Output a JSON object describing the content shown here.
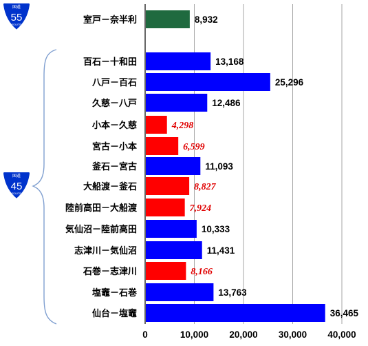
{
  "shields": {
    "route55": {
      "kanji": "国道",
      "number": "55",
      "sub": "ROUTE"
    },
    "route45": {
      "kanji": "国道",
      "number": "45",
      "sub": "ROUTE"
    }
  },
  "chart_data": {
    "type": "bar",
    "orientation": "horizontal",
    "xlim": [
      0,
      40000
    ],
    "xticks": [
      "0",
      "10,000",
      "20,000",
      "30,000",
      "40,000"
    ],
    "grid": true,
    "colors": {
      "green": "#1f6a3f",
      "blue": "#0000ff",
      "red": "#ff0000"
    },
    "bars": [
      {
        "category": "室戸－奈半利",
        "value": 8932,
        "label": "8,932",
        "color": "green",
        "route": "55"
      },
      {
        "category": "百石－十和田",
        "value": 13168,
        "label": "13,168",
        "color": "blue",
        "route": "45"
      },
      {
        "category": "八戸－百石",
        "value": 25296,
        "label": "25,296",
        "color": "blue",
        "route": "45"
      },
      {
        "category": "久慈－八戸",
        "value": 12486,
        "label": "12,486",
        "color": "blue",
        "route": "45"
      },
      {
        "category": "小本－久慈",
        "value": 4298,
        "label": "4,298",
        "color": "red",
        "route": "45"
      },
      {
        "category": "宮古－小本",
        "value": 6599,
        "label": "6,599",
        "color": "red",
        "route": "45"
      },
      {
        "category": "釜石－宮古",
        "value": 11093,
        "label": "11,093",
        "color": "blue",
        "route": "45"
      },
      {
        "category": "大船渡－釜石",
        "value": 8827,
        "label": "8,827",
        "color": "red",
        "route": "45"
      },
      {
        "category": "陸前高田－大船渡",
        "value": 7924,
        "label": "7,924",
        "color": "red",
        "route": "45"
      },
      {
        "category": "気仙沼－陸前高田",
        "value": 10333,
        "label": "10,333",
        "color": "blue",
        "route": "45"
      },
      {
        "category": "志津川－気仙沼",
        "value": 11431,
        "label": "11,431",
        "color": "blue",
        "route": "45"
      },
      {
        "category": "石巻－志津川",
        "value": 8166,
        "label": "8,166",
        "color": "red",
        "route": "45"
      },
      {
        "category": "塩竈－石巻",
        "value": 13763,
        "label": "13,763",
        "color": "blue",
        "route": "45"
      },
      {
        "category": "仙台－塩竈",
        "value": 36465,
        "label": "36,465",
        "color": "blue",
        "route": "45"
      }
    ]
  }
}
